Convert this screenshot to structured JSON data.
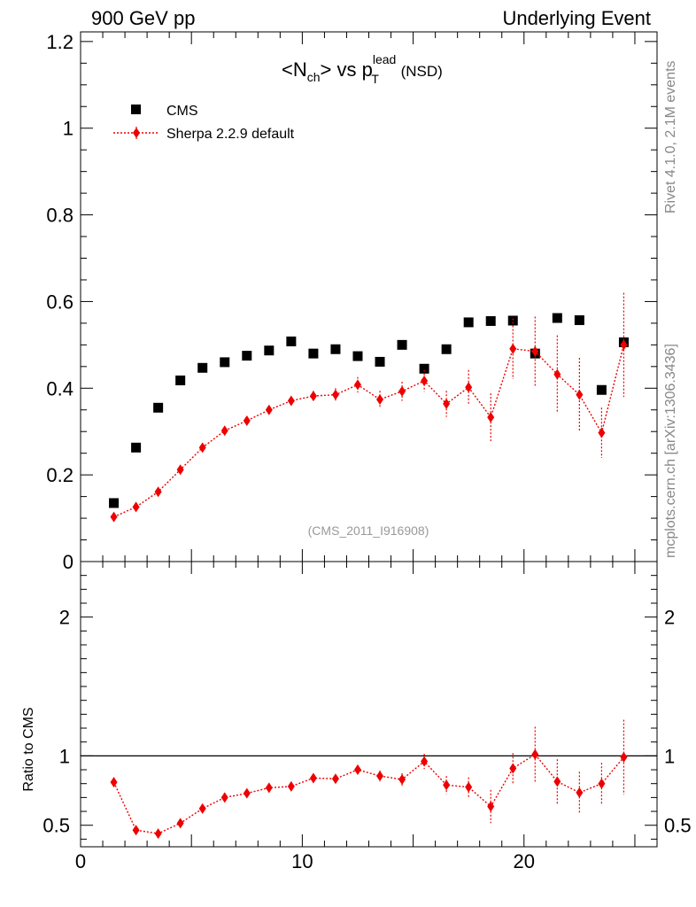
{
  "header": {
    "left": "900 GeV pp",
    "right": "Underlying Event"
  },
  "side_labels": {
    "rivet": "Rivet 4.1.0,  2.1M events",
    "mcplots": "mcplots.cern.ch [arXiv:1306.3436]"
  },
  "analysis_ref": "(CMS_2011_I916908)",
  "chart_data": [
    {
      "type": "scatter",
      "panel": "main",
      "title_parts": {
        "a": "<N",
        "a_sub": "ch",
        "b": "> vs p",
        "b_sup": "lead",
        "b_sub": "T",
        "c": " (NSD)"
      },
      "xlim": [
        0,
        26
      ],
      "ylim": [
        0,
        1.2222
      ],
      "y_ticks": [
        0,
        0.2,
        0.4,
        0.6,
        0.8,
        1,
        1.2
      ],
      "y_tick_labels": [
        "0",
        "0.2",
        "0.4",
        "0.6",
        "0.8",
        "1",
        "1.2"
      ],
      "x_ticks": [
        0,
        10,
        20
      ],
      "x_tick_labels": [
        "0",
        "10",
        "20"
      ],
      "legend_position": "top-left",
      "series": [
        {
          "name": "CMS",
          "marker": "square",
          "color": "#000000",
          "x": [
            1.5,
            2.5,
            3.5,
            4.5,
            5.5,
            6.5,
            7.5,
            8.5,
            9.5,
            10.5,
            11.5,
            12.5,
            13.5,
            14.5,
            15.5,
            16.5,
            17.5,
            18.5,
            19.5,
            20.5,
            21.5,
            22.5,
            23.5,
            24.5
          ],
          "y": [
            0.135,
            0.263,
            0.355,
            0.418,
            0.447,
            0.46,
            0.475,
            0.487,
            0.508,
            0.48,
            0.49,
            0.474,
            0.461,
            0.5,
            0.445,
            0.49,
            0.552,
            0.555,
            0.556,
            0.48,
            0.562,
            0.557,
            0.396,
            0.506
          ]
        },
        {
          "name": "Sherpa 2.2.9 default",
          "marker": "diamond",
          "color": "#ee0000",
          "x": [
            1.5,
            2.5,
            3.5,
            4.5,
            5.5,
            6.5,
            7.5,
            8.5,
            9.5,
            10.5,
            11.5,
            12.5,
            13.5,
            14.5,
            15.5,
            16.5,
            17.5,
            18.5,
            19.5,
            20.5,
            21.5,
            22.5,
            23.5,
            24.5
          ],
          "y": [
            0.103,
            0.126,
            0.161,
            0.212,
            0.263,
            0.302,
            0.325,
            0.35,
            0.371,
            0.382,
            0.385,
            0.408,
            0.374,
            0.393,
            0.417,
            0.364,
            0.402,
            0.333,
            0.491,
            0.485,
            0.432,
            0.385,
            0.297,
            0.5
          ],
          "err": [
            0.003,
            0.003,
            0.004,
            0.005,
            0.006,
            0.007,
            0.008,
            0.009,
            0.01,
            0.012,
            0.015,
            0.018,
            0.02,
            0.022,
            0.025,
            0.03,
            0.04,
            0.055,
            0.07,
            0.08,
            0.09,
            0.085,
            0.058,
            0.12
          ]
        }
      ]
    },
    {
      "type": "scatter",
      "panel": "ratio",
      "ylabel": "Ratio to CMS",
      "xlim": [
        0,
        26
      ],
      "ylim": [
        0.345,
        2.4
      ],
      "y_ticks": [
        0.5,
        1,
        2
      ],
      "y_tick_labels": [
        "0.5",
        "1",
        "2"
      ],
      "x_ticks": [
        0,
        10,
        20
      ],
      "x_tick_labels": [
        "0",
        "10",
        "20"
      ],
      "reference_line": 1,
      "series": [
        {
          "name": "Sherpa 2.2.9 default / CMS",
          "color": "#ee0000",
          "x": [
            1.5,
            2.5,
            3.5,
            4.5,
            5.5,
            6.5,
            7.5,
            8.5,
            9.5,
            10.5,
            11.5,
            12.5,
            13.5,
            14.5,
            15.5,
            16.5,
            17.5,
            18.5,
            19.5,
            20.5,
            21.5,
            22.5,
            23.5,
            24.5
          ],
          "y": [
            0.81,
            0.465,
            0.44,
            0.515,
            0.62,
            0.7,
            0.73,
            0.77,
            0.78,
            0.84,
            0.835,
            0.9,
            0.855,
            0.83,
            0.96,
            0.79,
            0.775,
            0.635,
            0.91,
            1.01,
            0.815,
            0.735,
            0.8,
            0.99
          ],
          "err": [
            0.005,
            0.005,
            0.006,
            0.008,
            0.01,
            0.012,
            0.014,
            0.016,
            0.018,
            0.022,
            0.028,
            0.035,
            0.04,
            0.045,
            0.055,
            0.065,
            0.07,
            0.12,
            0.11,
            0.2,
            0.16,
            0.15,
            0.15,
            0.27
          ]
        }
      ]
    }
  ]
}
